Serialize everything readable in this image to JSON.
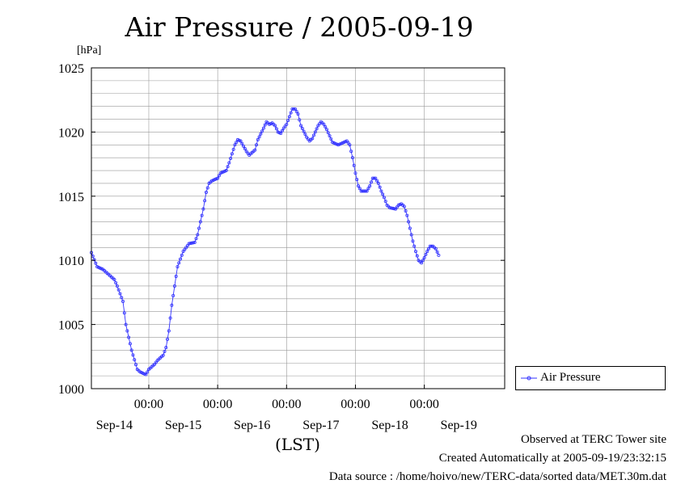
{
  "page": {
    "title": "Air Pressure / 2005-09-19",
    "unit": "[hPa]",
    "xaxis_label": "(LST)",
    "footer": [
      "Observed at TERC Tower site",
      "Created Automatically at 2005-09-19/23:32:15",
      "Data source : /home/hoivo/new/TERC-data/sorted  data/MET.30m.dat"
    ],
    "legend": "Air Pressure"
  },
  "colors": {
    "series": "#3333ff",
    "grid": "#999999",
    "axis": "#000000"
  },
  "chart_data": {
    "type": "line",
    "title": "Air Pressure / 2005-09-19",
    "ylabel": "[hPa]",
    "xlabel": "(LST)",
    "ylim": [
      1000,
      1025
    ],
    "yticks": [
      1000,
      1005,
      1010,
      1015,
      1020,
      1025
    ],
    "xlim": [
      -20,
      124
    ],
    "xticks_time": [
      "00:00",
      "00:00",
      "00:00",
      "00:00",
      "00:00"
    ],
    "xticks_date": [
      "Sep-14",
      "Sep-15",
      "Sep-16",
      "Sep-17",
      "Sep-18",
      "Sep-19"
    ],
    "x_unit": "hours from 2005-09-15 00:00",
    "grid": true,
    "legend_position": "right",
    "series": [
      {
        "name": "Air Pressure",
        "points": [
          [
            -20,
            1010.6
          ],
          [
            -18,
            1009.5
          ],
          [
            -16,
            1009.3
          ],
          [
            -14,
            1008.9
          ],
          [
            -12,
            1008.5
          ],
          [
            -11,
            1008.0
          ],
          [
            -9,
            1006.8
          ],
          [
            -8,
            1005.0
          ],
          [
            -6,
            1003.0
          ],
          [
            -4,
            1001.5
          ],
          [
            -3,
            1001.3
          ],
          [
            -1,
            1001.1
          ],
          [
            0,
            1001.5
          ],
          [
            2,
            1001.9
          ],
          [
            3,
            1002.2
          ],
          [
            5,
            1002.6
          ],
          [
            6,
            1003.2
          ],
          [
            7,
            1004.5
          ],
          [
            8,
            1006.5
          ],
          [
            9,
            1008.0
          ],
          [
            10,
            1009.5
          ],
          [
            12,
            1010.7
          ],
          [
            14,
            1011.3
          ],
          [
            16,
            1011.4
          ],
          [
            17,
            1012.0
          ],
          [
            18,
            1013.0
          ],
          [
            19,
            1014.0
          ],
          [
            20,
            1015.3
          ],
          [
            21,
            1016.0
          ],
          [
            22,
            1016.2
          ],
          [
            24,
            1016.4
          ],
          [
            25,
            1016.8
          ],
          [
            27,
            1017.0
          ],
          [
            28,
            1017.6
          ],
          [
            29,
            1018.3
          ],
          [
            30,
            1019.0
          ],
          [
            31,
            1019.4
          ],
          [
            32,
            1019.3
          ],
          [
            34,
            1018.5
          ],
          [
            35,
            1018.2
          ],
          [
            37,
            1018.6
          ],
          [
            38,
            1019.4
          ],
          [
            40,
            1020.3
          ],
          [
            41,
            1020.8
          ],
          [
            42,
            1020.6
          ],
          [
            43,
            1020.7
          ],
          [
            44,
            1020.5
          ],
          [
            45,
            1020.0
          ],
          [
            46,
            1019.9
          ],
          [
            47,
            1020.3
          ],
          [
            48,
            1020.6
          ],
          [
            49,
            1021.2
          ],
          [
            50,
            1021.8
          ],
          [
            51,
            1021.8
          ],
          [
            52,
            1021.4
          ],
          [
            53,
            1020.5
          ],
          [
            55,
            1019.6
          ],
          [
            56,
            1019.3
          ],
          [
            57,
            1019.5
          ],
          [
            58,
            1020.0
          ],
          [
            59,
            1020.5
          ],
          [
            60,
            1020.8
          ],
          [
            61,
            1020.6
          ],
          [
            62,
            1020.2
          ],
          [
            63,
            1019.7
          ],
          [
            64,
            1019.2
          ],
          [
            66,
            1019.0
          ],
          [
            68,
            1019.2
          ],
          [
            69,
            1019.3
          ],
          [
            70,
            1019.0
          ],
          [
            71,
            1018.0
          ],
          [
            72,
            1016.8
          ],
          [
            73,
            1015.8
          ],
          [
            74,
            1015.4
          ],
          [
            76,
            1015.4
          ],
          [
            77,
            1015.8
          ],
          [
            78,
            1016.4
          ],
          [
            79,
            1016.4
          ],
          [
            80,
            1016.0
          ],
          [
            81,
            1015.4
          ],
          [
            82,
            1014.9
          ],
          [
            83,
            1014.3
          ],
          [
            84,
            1014.1
          ],
          [
            86,
            1014.0
          ],
          [
            87,
            1014.3
          ],
          [
            88,
            1014.4
          ],
          [
            89,
            1014.2
          ],
          [
            90,
            1013.5
          ],
          [
            91,
            1012.5
          ],
          [
            92,
            1011.5
          ],
          [
            93,
            1010.7
          ],
          [
            94,
            1010.0
          ],
          [
            95,
            1009.8
          ],
          [
            96,
            1010.2
          ],
          [
            97,
            1010.7
          ],
          [
            98,
            1011.1
          ],
          [
            99,
            1011.1
          ],
          [
            100,
            1010.9
          ],
          [
            101,
            1010.4
          ]
        ]
      }
    ]
  }
}
